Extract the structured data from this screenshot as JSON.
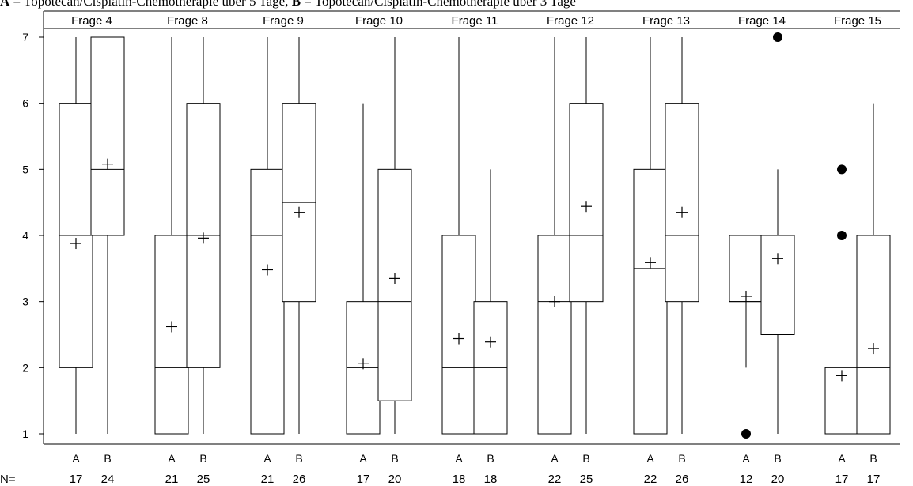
{
  "caption": {
    "letter_a": "A",
    "text_a": " = Topotecan/Cisplatin-Chemotherapie über 5 Tage, ",
    "letter_b": "B",
    "text_b": " = Topotecan/Cisplatin-Chemotherapie über 3 Tage"
  },
  "n_label": "N=",
  "colors": {
    "stroke": "#000000",
    "background": "#ffffff"
  },
  "chart_data": {
    "type": "boxplot",
    "ylim": [
      1,
      7
    ],
    "yticks": [
      1,
      2,
      3,
      4,
      5,
      6,
      7
    ],
    "groups": [
      {
        "label": "Frage 4",
        "boxes": [
          {
            "cat": "A",
            "n": "17",
            "whislo": 1,
            "q1": 2,
            "med": 4,
            "q3": 6,
            "whishi": 7,
            "mean": 3.88,
            "fliers": []
          },
          {
            "cat": "B",
            "n": "24",
            "whislo": 1,
            "q1": 4,
            "med": 5,
            "q3": 7,
            "whishi": 7,
            "mean": 5.08,
            "fliers": []
          }
        ]
      },
      {
        "label": "Frage 8",
        "boxes": [
          {
            "cat": "A",
            "n": "21",
            "whislo": 1,
            "q1": 1,
            "med": 2,
            "q3": 4,
            "whishi": 7,
            "mean": 2.62,
            "fliers": []
          },
          {
            "cat": "B",
            "n": "25",
            "whislo": 1,
            "q1": 2,
            "med": 4,
            "q3": 6,
            "whishi": 7,
            "mean": 3.96,
            "fliers": []
          }
        ]
      },
      {
        "label": "Frage 9",
        "boxes": [
          {
            "cat": "A",
            "n": "21",
            "whislo": 1,
            "q1": 1,
            "med": 4,
            "q3": 5,
            "whishi": 7,
            "mean": 3.48,
            "fliers": []
          },
          {
            "cat": "B",
            "n": "26",
            "whislo": 1,
            "q1": 3,
            "med": 4.5,
            "q3": 6,
            "whishi": 7,
            "mean": 4.35,
            "fliers": []
          }
        ]
      },
      {
        "label": "Frage 10",
        "boxes": [
          {
            "cat": "A",
            "n": "17",
            "whislo": 1,
            "q1": 1,
            "med": 2,
            "q3": 3,
            "whishi": 6,
            "mean": 2.06,
            "fliers": []
          },
          {
            "cat": "B",
            "n": "20",
            "whislo": 1,
            "q1": 1.5,
            "med": 3,
            "q3": 5,
            "whishi": 7,
            "mean": 3.35,
            "fliers": []
          }
        ]
      },
      {
        "label": "Frage 11",
        "boxes": [
          {
            "cat": "A",
            "n": "18",
            "whislo": 1,
            "q1": 1,
            "med": 2,
            "q3": 4,
            "whishi": 7,
            "mean": 2.44,
            "fliers": []
          },
          {
            "cat": "B",
            "n": "18",
            "whislo": 1,
            "q1": 1,
            "med": 2,
            "q3": 3,
            "whishi": 5,
            "mean": 2.39,
            "fliers": []
          }
        ]
      },
      {
        "label": "Frage 12",
        "boxes": [
          {
            "cat": "A",
            "n": "22",
            "whislo": 1,
            "q1": 1,
            "med": 3,
            "q3": 4,
            "whishi": 7,
            "mean": 3.0,
            "fliers": []
          },
          {
            "cat": "B",
            "n": "25",
            "whislo": 1,
            "q1": 3,
            "med": 4,
            "q3": 6,
            "whishi": 7,
            "mean": 4.44,
            "fliers": []
          }
        ]
      },
      {
        "label": "Frage 13",
        "boxes": [
          {
            "cat": "A",
            "n": "22",
            "whislo": 1,
            "q1": 1,
            "med": 3.5,
            "q3": 5,
            "whishi": 7,
            "mean": 3.59,
            "fliers": []
          },
          {
            "cat": "B",
            "n": "26",
            "whislo": 1,
            "q1": 3,
            "med": 4,
            "q3": 6,
            "whishi": 7,
            "mean": 4.35,
            "fliers": []
          }
        ]
      },
      {
        "label": "Frage 14",
        "boxes": [
          {
            "cat": "A",
            "n": "12",
            "whislo": 2,
            "q1": 3,
            "med": 3,
            "q3": 4,
            "whishi": 4,
            "mean": 3.08,
            "fliers": [
              1
            ]
          },
          {
            "cat": "B",
            "n": "20",
            "whislo": 1,
            "q1": 2.5,
            "med": 4,
            "q3": 4,
            "whishi": 5,
            "mean": 3.65,
            "fliers": [
              7
            ]
          }
        ]
      },
      {
        "label": "Frage 15",
        "boxes": [
          {
            "cat": "A",
            "n": "17",
            "whislo": 1,
            "q1": 1,
            "med": 1,
            "q3": 2,
            "whishi": 2,
            "mean": 1.88,
            "fliers": [
              4,
              5
            ]
          },
          {
            "cat": "B",
            "n": "17",
            "whislo": 1,
            "q1": 1,
            "med": 2,
            "q3": 4,
            "whishi": 6,
            "mean": 2.29,
            "fliers": []
          }
        ]
      }
    ]
  }
}
